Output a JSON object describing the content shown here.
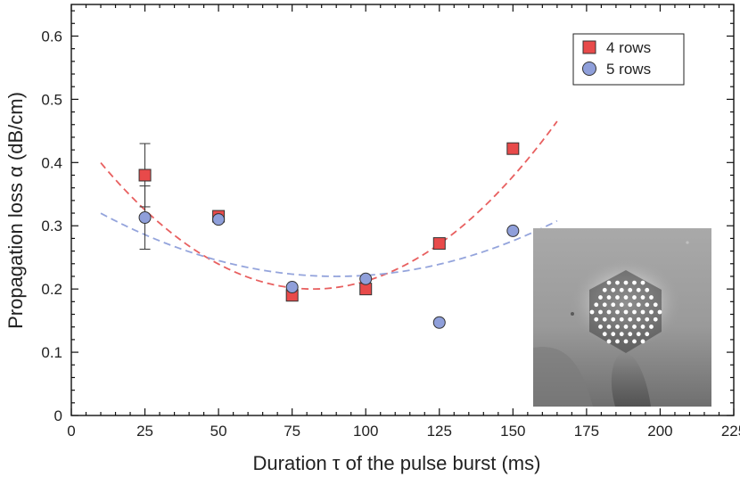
{
  "chart_data": {
    "type": "scatter",
    "title": "",
    "xlabel": "Duration τ of the pulse burst (ms)",
    "ylabel": "Propagation loss α (dB/cm)",
    "xlim": [
      0,
      225
    ],
    "ylim": [
      0,
      0.65
    ],
    "xticks": [
      0,
      25,
      50,
      75,
      100,
      125,
      150,
      175,
      200,
      225
    ],
    "yticks": [
      0,
      0.1,
      0.2,
      0.3,
      0.4,
      0.5,
      0.6
    ],
    "xtick_labels": [
      "0",
      "25",
      "50",
      "75",
      "100",
      "125",
      "150",
      "175",
      "200",
      "225"
    ],
    "ytick_labels": [
      "0",
      "0.1",
      "0.2",
      "0.3",
      "0.4",
      "0.5",
      "0.6"
    ],
    "legend_position": "top-right",
    "series": [
      {
        "name": "4 rows",
        "marker": "square",
        "color": "#e84a4a",
        "x": [
          25,
          50,
          75,
          100,
          125,
          150
        ],
        "y": [
          0.38,
          0.315,
          0.19,
          0.2,
          0.272,
          0.422
        ],
        "error_bars": [
          {
            "x": 25,
            "low": 0.33,
            "high": 0.43
          }
        ],
        "fit": {
          "type": "quadratic",
          "vertex_x": 82,
          "vertex_y": 0.2,
          "a": 3.85e-05,
          "x_range": [
            10,
            165
          ],
          "color": "#e86060"
        }
      },
      {
        "name": "5 rows",
        "marker": "circle",
        "color": "#8f9fda",
        "x": [
          25,
          50,
          75,
          100,
          125,
          150
        ],
        "y": [
          0.313,
          0.31,
          0.203,
          0.216,
          0.147,
          0.292
        ],
        "error_bars": [
          {
            "x": 25,
            "low": 0.263,
            "high": 0.363
          }
        ],
        "fit": {
          "type": "quadratic",
          "vertex_x": 90,
          "vertex_y": 0.22,
          "a": 1.56e-05,
          "x_range": [
            10,
            165
          ],
          "color": "#94a4dc"
        }
      }
    ],
    "inset": {
      "description": "photograph",
      "position": "bottom-right"
    }
  }
}
